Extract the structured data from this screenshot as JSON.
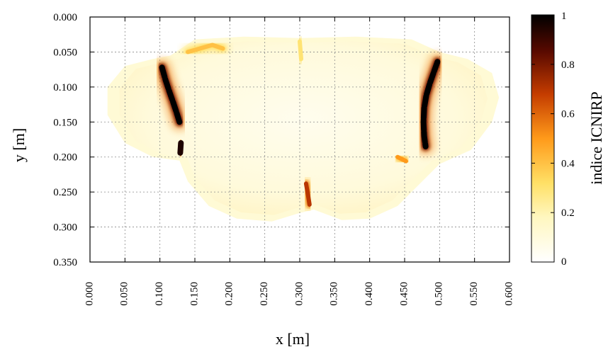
{
  "chart_data": {
    "type": "heatmap",
    "xlabel": "x [m]",
    "ylabel": "y [m]",
    "colorbar_label": "indice ICNIRP",
    "xlim": [
      0.0,
      0.6
    ],
    "ylim": [
      0.0,
      0.35
    ],
    "y_inverted": true,
    "x_ticks": [
      "0.000",
      "0.050",
      "0.100",
      "0.150",
      "0.200",
      "0.250",
      "0.300",
      "0.350",
      "0.400",
      "0.450",
      "0.500",
      "0.550",
      "0.600"
    ],
    "y_ticks": [
      "0.000",
      "0.050",
      "0.100",
      "0.150",
      "0.200",
      "0.250",
      "0.300",
      "0.350"
    ],
    "colorbar_ticks": [
      "0",
      "0.2",
      "0.4",
      "0.6",
      "0.8",
      "1"
    ],
    "colorbar_range": [
      0,
      1
    ],
    "colormap": [
      "#ffffff",
      "#fff7c0",
      "#ffe066",
      "#ff9a1a",
      "#c43c00",
      "#5a0a00",
      "#000000"
    ],
    "grid": true,
    "background_level": 0.12,
    "hotspots": [
      {
        "name": "left-arc",
        "points": [
          [
            0.103,
            0.072
          ],
          [
            0.108,
            0.09
          ],
          [
            0.114,
            0.108
          ],
          [
            0.119,
            0.122
          ],
          [
            0.124,
            0.137
          ],
          [
            0.128,
            0.15
          ]
        ],
        "value": 1.0
      },
      {
        "name": "left-arc-lower",
        "points": [
          [
            0.13,
            0.18
          ],
          [
            0.129,
            0.195
          ]
        ],
        "value": 0.95
      },
      {
        "name": "right-arc",
        "points": [
          [
            0.497,
            0.064
          ],
          [
            0.492,
            0.078
          ],
          [
            0.486,
            0.095
          ],
          [
            0.481,
            0.112
          ],
          [
            0.478,
            0.13
          ],
          [
            0.477,
            0.15
          ],
          [
            0.478,
            0.17
          ],
          [
            0.48,
            0.185
          ]
        ],
        "value": 1.0
      },
      {
        "name": "bottom-center",
        "points": [
          [
            0.309,
            0.238
          ],
          [
            0.312,
            0.255
          ],
          [
            0.314,
            0.268
          ]
        ],
        "value": 0.7
      },
      {
        "name": "right-lower-spot",
        "points": [
          [
            0.44,
            0.2
          ],
          [
            0.452,
            0.206
          ]
        ],
        "value": 0.5
      },
      {
        "name": "top-left-ridge",
        "points": [
          [
            0.14,
            0.05
          ],
          [
            0.175,
            0.04
          ],
          [
            0.19,
            0.045
          ]
        ],
        "value": 0.4
      },
      {
        "name": "top-center-line",
        "points": [
          [
            0.3,
            0.035
          ],
          [
            0.302,
            0.06
          ]
        ],
        "value": 0.3
      }
    ]
  }
}
